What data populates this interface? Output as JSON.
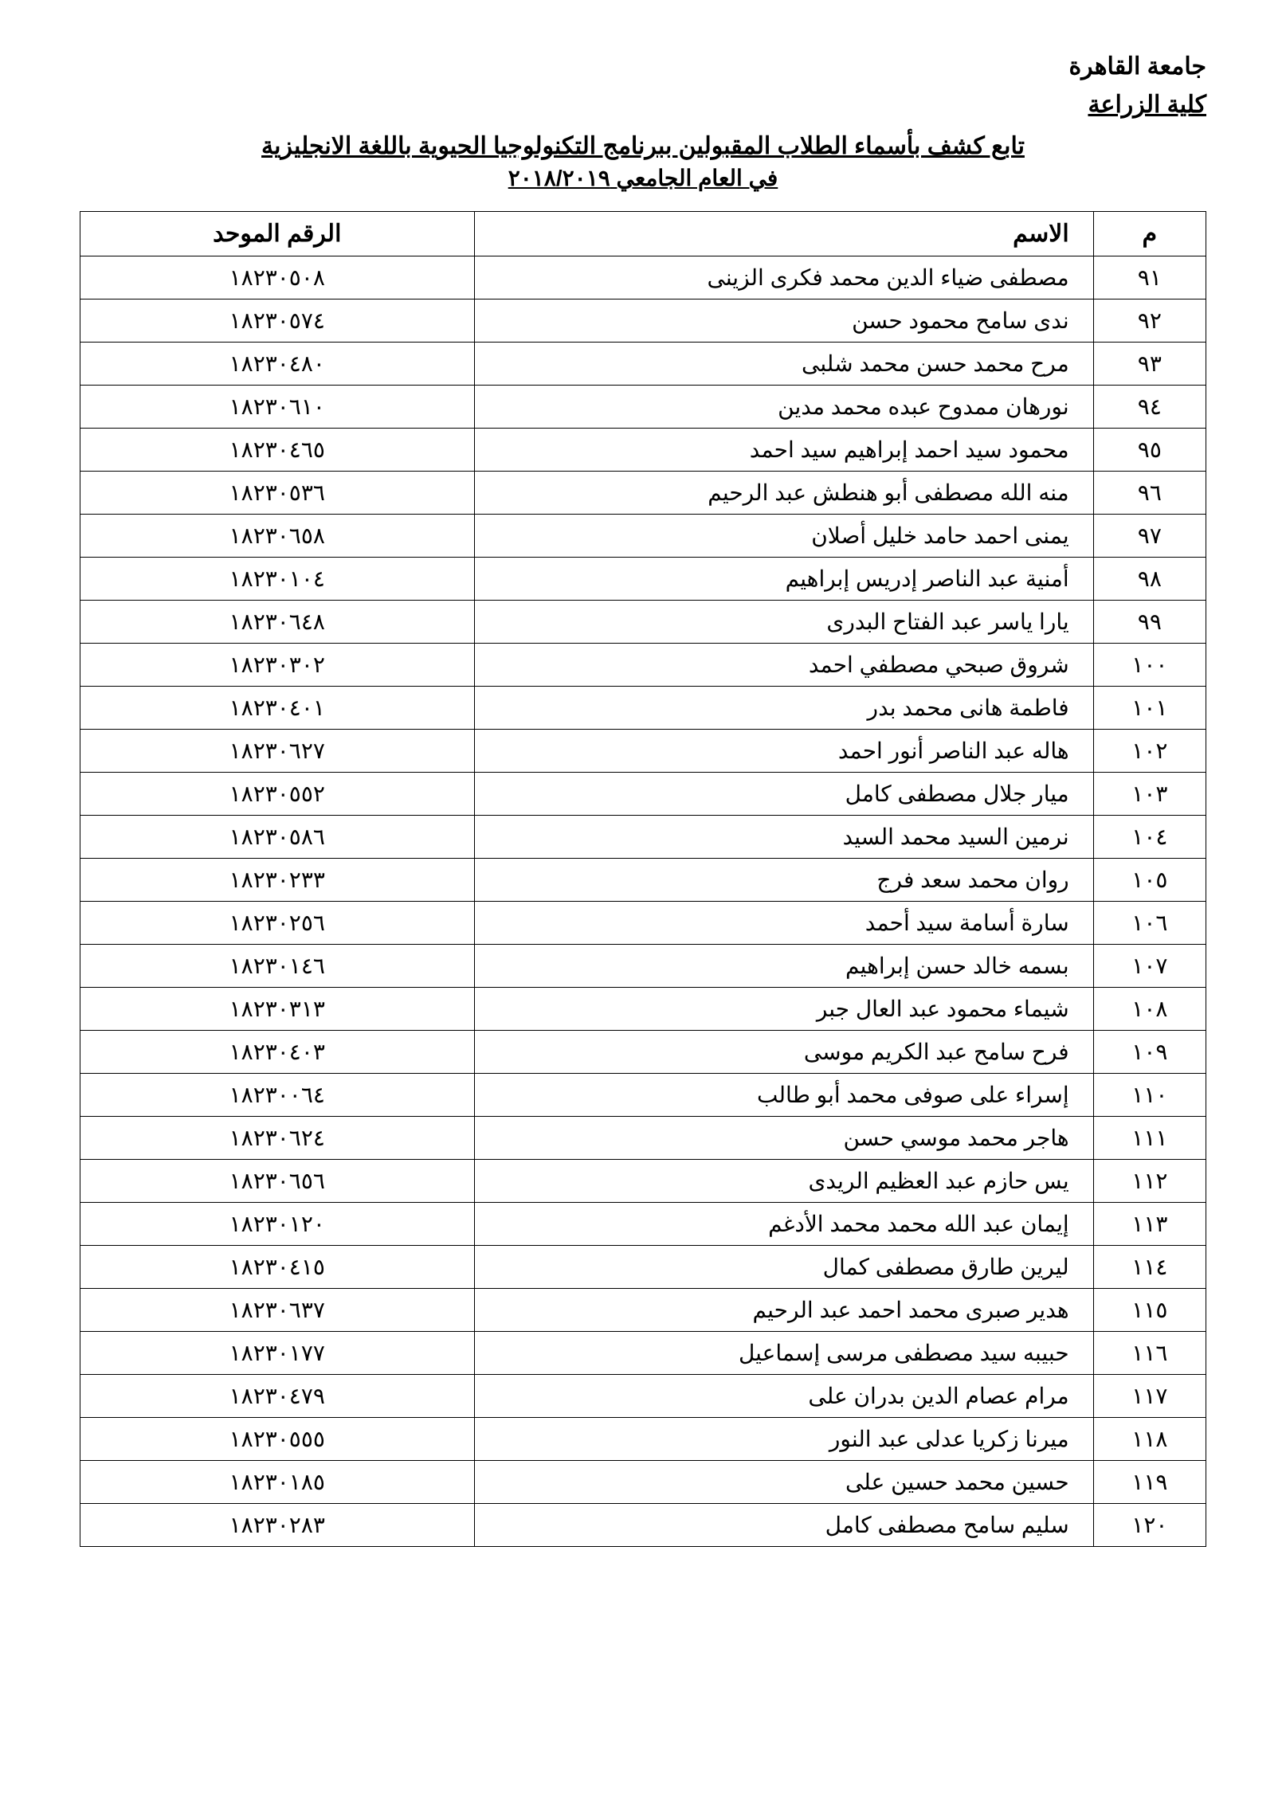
{
  "header": {
    "university": "جامعة القاهرة",
    "faculty": "كلية الزراعة"
  },
  "title": "تابع كشف بأسماء الطلاب المقبولين ببرنامج التكنولوجيا الحيوية باللغة الانجليزية",
  "subtitle": "في العام الجامعي ٢٠١٨/٢٠١٩",
  "columns": {
    "num": "م",
    "name": "الاسم",
    "id": "الرقم الموحد"
  },
  "rows": [
    {
      "num": "٩١",
      "name": "مصطفى ضياء الدين محمد فكرى الزينى",
      "id": "١٨٢٣٠٥٠٨"
    },
    {
      "num": "٩٢",
      "name": "ندى سامح محمود حسن",
      "id": "١٨٢٣٠٥٧٤"
    },
    {
      "num": "٩٣",
      "name": "مرح محمد حسن محمد شلبى",
      "id": "١٨٢٣٠٤٨٠"
    },
    {
      "num": "٩٤",
      "name": "نورهان ممدوح عبده محمد مدين",
      "id": "١٨٢٣٠٦١٠"
    },
    {
      "num": "٩٥",
      "name": "محمود سيد احمد إبراهيم سيد احمد",
      "id": "١٨٢٣٠٤٦٥"
    },
    {
      "num": "٩٦",
      "name": "منه الله مصطفى أبو هنطش عبد الرحيم",
      "id": "١٨٢٣٠٥٣٦"
    },
    {
      "num": "٩٧",
      "name": "يمنى احمد حامد خليل أصلان",
      "id": "١٨٢٣٠٦٥٨"
    },
    {
      "num": "٩٨",
      "name": "أمنية عبد الناصر إدريس إبراهيم",
      "id": "١٨٢٣٠١٠٤"
    },
    {
      "num": "٩٩",
      "name": "يارا ياسر عبد الفتاح البدرى",
      "id": "١٨٢٣٠٦٤٨"
    },
    {
      "num": "١٠٠",
      "name": "شروق صبحي مصطفي احمد",
      "id": "١٨٢٣٠٣٠٢"
    },
    {
      "num": "١٠١",
      "name": "فاطمة هانى محمد بدر",
      "id": "١٨٢٣٠٤٠١"
    },
    {
      "num": "١٠٢",
      "name": "هاله عبد الناصر أنور احمد",
      "id": "١٨٢٣٠٦٢٧"
    },
    {
      "num": "١٠٣",
      "name": "ميار جلال مصطفى كامل",
      "id": "١٨٢٣٠٥٥٢"
    },
    {
      "num": "١٠٤",
      "name": "نرمين السيد محمد السيد",
      "id": "١٨٢٣٠٥٨٦"
    },
    {
      "num": "١٠٥",
      "name": "روان محمد سعد فرج",
      "id": "١٨٢٣٠٢٣٣"
    },
    {
      "num": "١٠٦",
      "name": "سارة أسامة سيد أحمد",
      "id": "١٨٢٣٠٢٥٦"
    },
    {
      "num": "١٠٧",
      "name": "بسمه خالد حسن إبراهيم",
      "id": "١٨٢٣٠١٤٦"
    },
    {
      "num": "١٠٨",
      "name": "شيماء محمود عبد العال جبر",
      "id": "١٨٢٣٠٣١٣"
    },
    {
      "num": "١٠٩",
      "name": "فرح سامح عبد الكريم موسى",
      "id": "١٨٢٣٠٤٠٣"
    },
    {
      "num": "١١٠",
      "name": "إسراء على صوفى محمد أبو طالب",
      "id": "١٨٢٣٠٠٦٤"
    },
    {
      "num": "١١١",
      "name": "هاجر محمد موسي حسن",
      "id": "١٨٢٣٠٦٢٤"
    },
    {
      "num": "١١٢",
      "name": "يس حازم عبد العظيم الريدى",
      "id": "١٨٢٣٠٦٥٦"
    },
    {
      "num": "١١٣",
      "name": "إيمان عبد الله محمد محمد الأدغم",
      "id": "١٨٢٣٠١٢٠"
    },
    {
      "num": "١١٤",
      "name": "ليرين طارق مصطفى كمال",
      "id": "١٨٢٣٠٤١٥"
    },
    {
      "num": "١١٥",
      "name": "هدير صبرى محمد احمد عبد الرحيم",
      "id": "١٨٢٣٠٦٣٧"
    },
    {
      "num": "١١٦",
      "name": "حبيبه سيد مصطفى مرسى إسماعيل",
      "id": "١٨٢٣٠١٧٧"
    },
    {
      "num": "١١٧",
      "name": "مرام عصام الدين بدران على",
      "id": "١٨٢٣٠٤٧٩"
    },
    {
      "num": "١١٨",
      "name": "ميرنا زكريا عدلى عبد النور",
      "id": "١٨٢٣٠٥٥٥"
    },
    {
      "num": "١١٩",
      "name": "حسين محمد حسين على",
      "id": "١٨٢٣٠١٨٥"
    },
    {
      "num": "١٢٠",
      "name": "سليم سامح مصطفى كامل",
      "id": "١٨٢٣٠٢٨٣"
    }
  ]
}
